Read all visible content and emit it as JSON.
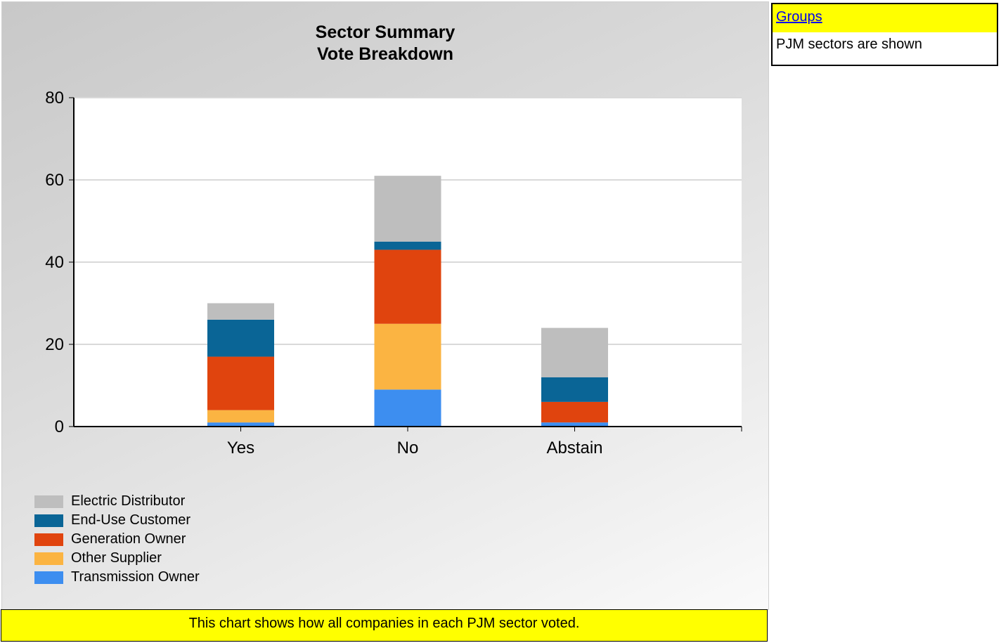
{
  "chart_data": {
    "type": "bar",
    "stacked": true,
    "title": "Sector Summary",
    "subtitle": "Vote Breakdown",
    "xlabel": "",
    "ylabel": "",
    "ylim": [
      0,
      80
    ],
    "yticks": [
      0,
      20,
      40,
      60,
      80
    ],
    "grid": true,
    "legend_position": "bottom-left",
    "categories": [
      "Yes",
      "No",
      "Abstain"
    ],
    "series": [
      {
        "name": "Transmission Owner",
        "color": "#3d8ef0",
        "values": [
          1,
          9,
          1
        ]
      },
      {
        "name": "Other Supplier",
        "color": "#fbb442",
        "values": [
          3,
          16,
          0
        ]
      },
      {
        "name": "Generation Owner",
        "color": "#e0440e",
        "values": [
          13,
          18,
          5
        ]
      },
      {
        "name": "End-Use Customer",
        "color": "#0a6596",
        "values": [
          9,
          2,
          6
        ]
      },
      {
        "name": "Electric Distributor",
        "color": "#bebebe",
        "values": [
          4,
          16,
          12
        ]
      }
    ]
  },
  "legend": [
    {
      "label": "Electric Distributor",
      "color": "#bebebe"
    },
    {
      "label": "End-Use Customer",
      "color": "#0a6596"
    },
    {
      "label": "Generation Owner",
      "color": "#e0440e"
    },
    {
      "label": "Other Supplier",
      "color": "#fbb442"
    },
    {
      "label": "Transmission Owner",
      "color": "#3d8ef0"
    }
  ],
  "caption": "This chart shows how all companies in each PJM sector voted.",
  "groups_panel": {
    "header_link": "Groups",
    "text": "PJM sectors are shown"
  },
  "colors": {
    "highlight": "#ffff00",
    "link": "#0000ee"
  }
}
